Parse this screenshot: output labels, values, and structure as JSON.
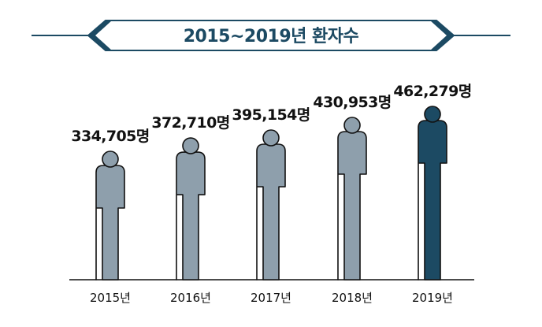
{
  "title": "2015~2019년 환자수",
  "colors": {
    "title_text": "#1c4a63",
    "banner_line": "#1c4a63",
    "figure_default": "#8e9fac",
    "figure_highlight": "#1c4a63",
    "figure_outline": "#111111",
    "baseline": "#111111"
  },
  "chart_data": {
    "type": "bar",
    "title": "2015~2019년 환자수",
    "categories": [
      "2015년",
      "2016년",
      "2017년",
      "2018년",
      "2019년"
    ],
    "values": [
      334705,
      372710,
      395154,
      430953,
      462279
    ],
    "value_labels": [
      "334,705명",
      "372,710명",
      "395,154명",
      "430,953명",
      "462,279명"
    ],
    "highlight_index": 4,
    "mark_shape": "person-silhouette",
    "grid": false,
    "legend": "none"
  }
}
